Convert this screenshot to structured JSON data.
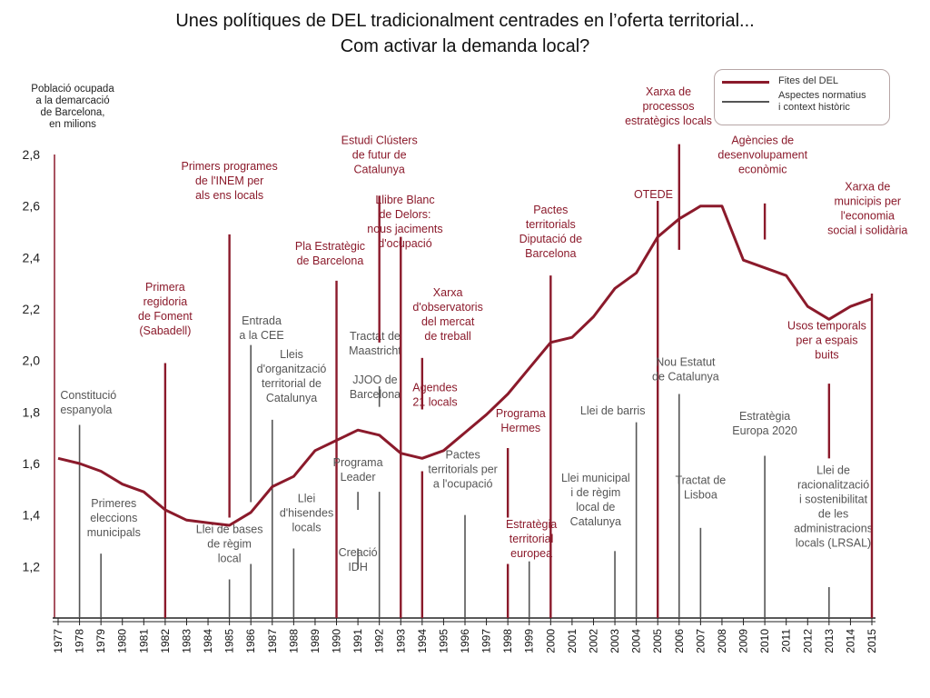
{
  "title": {
    "line1": "Unes polítiques de DEL tradicionalment centrades en l’oferta territorial...",
    "line2": "Com activar la demanda local?"
  },
  "colors": {
    "milestone": "#8b1a2b",
    "context": "#555555",
    "series": "#8b1a2b"
  },
  "chart_data": {
    "type": "line",
    "title": "",
    "ylabel": [
      "Població ocupada",
      "a la demarcació",
      "de Barcelona,",
      "en milions"
    ],
    "xlabel": "",
    "ylim": [
      1.0,
      2.8
    ],
    "yticks": [
      "1,2",
      "1,4",
      "1,6",
      "1,8",
      "2,0",
      "2,2",
      "2,4",
      "2,6",
      "2,8"
    ],
    "x": [
      "1977",
      "1978",
      "1979",
      "1980",
      "1981",
      "1982",
      "1983",
      "1984",
      "1985",
      "1986",
      "1987",
      "1988",
      "1989",
      "1990",
      "1991",
      "1992",
      "1993",
      "1994",
      "1995",
      "1996",
      "1997",
      "1998",
      "1999",
      "2000",
      "2001",
      "2002",
      "2003",
      "2004",
      "2005",
      "2006",
      "2007",
      "2008",
      "2009",
      "2010",
      "2011",
      "2012",
      "2013",
      "2014",
      "2015"
    ],
    "series": [
      {
        "values": [
          1.62,
          1.6,
          1.57,
          1.52,
          1.49,
          1.42,
          1.38,
          1.37,
          1.36,
          1.41,
          1.51,
          1.55,
          1.65,
          1.69,
          1.73,
          1.71,
          1.64,
          1.62,
          1.65,
          1.72,
          1.79,
          1.87,
          1.97,
          2.07,
          2.09,
          2.17,
          2.28,
          2.34,
          2.48,
          2.55,
          2.6,
          2.6,
          2.39,
          2.36,
          2.33,
          2.21,
          2.16,
          2.21,
          2.24
        ]
      }
    ],
    "legend": [
      {
        "label": [
          "Fites del DEL"
        ],
        "kind": "milestone"
      },
      {
        "label": [
          "Aspectes normatius",
          "i context històric"
        ],
        "kind": "context"
      }
    ],
    "annotations": [
      {
        "year": 1978,
        "kind": "context",
        "bottom": 1.0,
        "top": 1.75,
        "text": [
          "Constitució",
          "espanyola"
        ],
        "text_y": 1.85,
        "align": "left",
        "text_x": 1977.1
      },
      {
        "year": 1979,
        "kind": "context",
        "bottom": 1.0,
        "top": 1.25,
        "text": [
          "Primeres",
          "eleccions",
          "municipals"
        ],
        "text_y": 1.43,
        "align": "middle",
        "text_x": 1979.6
      },
      {
        "year": 1982,
        "kind": "milestone",
        "bottom": 1.0,
        "top": 1.99,
        "text": [
          "Primera",
          "regidoria",
          "de Foment",
          "(Sabadell)"
        ],
        "text_y": 2.27,
        "align": "middle",
        "text_x": 1982.0
      },
      {
        "year": 1985,
        "kind": "milestone",
        "bottom": 1.39,
        "top": 2.49,
        "text": [
          "Primers programes",
          "de l'INEM per",
          "als ens locals"
        ],
        "text_y": 2.74,
        "align": "middle",
        "text_x": 1985.0
      },
      {
        "year": 1985,
        "kind": "context",
        "bottom": 1.0,
        "top": 1.15,
        "text": [
          "Llei de bases",
          "de règim",
          "local"
        ],
        "text_y": 1.33,
        "align": "middle",
        "text_x": 1985.0
      },
      {
        "year": 1986,
        "kind": "context",
        "bottom": 1.0,
        "top": 1.21,
        "text": [],
        "text_y": 0,
        "align": "middle",
        "text_x": 1986.0
      },
      {
        "year": 1986,
        "kind": "context",
        "bottom": 1.45,
        "top": 2.06,
        "text": [
          "Entrada",
          "a la CEE"
        ],
        "text_y": 2.14,
        "align": "middle",
        "text_x": 1986.5
      },
      {
        "year": 1987,
        "kind": "context",
        "bottom": 1.0,
        "top": 1.77,
        "text": [
          "Lleis",
          "d'organització",
          "territorial de",
          "Catalunya"
        ],
        "text_y": 2.01,
        "align": "middle",
        "text_x": 1987.9
      },
      {
        "year": 1988,
        "kind": "context",
        "bottom": 1.0,
        "top": 1.27,
        "text": [
          "Llei",
          "d'hisendes",
          "locals"
        ],
        "text_y": 1.45,
        "align": "middle",
        "text_x": 1988.6
      },
      {
        "year": 1990,
        "kind": "milestone",
        "bottom": 1.0,
        "top": 2.31,
        "text": [
          "Pla Estratègic",
          "de Barcelona"
        ],
        "text_y": 2.43,
        "align": "middle",
        "text_x": 1989.7
      },
      {
        "year": 1991,
        "kind": "context",
        "bottom": 1.19,
        "top": 1.27,
        "text": [
          "Creació",
          "IDH"
        ],
        "text_y": 1.24,
        "align": "middle",
        "text_x": 1991.0
      },
      {
        "year": 1991,
        "kind": "context",
        "bottom": 1.42,
        "top": 1.49,
        "text": [
          "Programa",
          "Leader"
        ],
        "text_y": 1.59,
        "align": "middle",
        "text_x": 1991.0
      },
      {
        "year": 1992,
        "kind": "context",
        "bottom": 1.0,
        "top": 1.49,
        "text": [
          "JJOO de",
          "Barcelona"
        ],
        "text_y": 1.91,
        "align": "middle",
        "text_x": 1991.8
      },
      {
        "year": 1992,
        "kind": "context",
        "bottom": 1.82,
        "top": 1.9,
        "text": [
          "Tractat de",
          "Maastricht"
        ],
        "text_y": 2.08,
        "align": "middle",
        "text_x": 1991.8
      },
      {
        "year": 1992,
        "kind": "milestone",
        "bottom": 2.07,
        "top": 2.64,
        "text": [
          "Estudi Clústers",
          "de futur de",
          "Catalunya"
        ],
        "text_y": 2.84,
        "align": "middle",
        "text_x": 1992.0
      },
      {
        "year": 1993,
        "kind": "milestone",
        "bottom": 1.0,
        "top": 2.48,
        "text": [
          "Llibre Blanc",
          "de Delors:",
          "nous jaciments",
          "d'ocupació"
        ],
        "text_y": 2.61,
        "align": "middle",
        "text_x": 1993.2
      },
      {
        "year": 1994,
        "kind": "milestone",
        "bottom": 1.0,
        "top": 1.57,
        "text": [
          "Agendes",
          "21 locals"
        ],
        "text_y": 1.88,
        "align": "middle",
        "text_x": 1994.6
      },
      {
        "year": 1994,
        "kind": "milestone",
        "bottom": 1.81,
        "top": 2.01,
        "text": [
          "Xarxa",
          "d'observatoris",
          "del mercat",
          "de treball"
        ],
        "text_y": 2.25,
        "align": "middle",
        "text_x": 1995.2
      },
      {
        "year": 1996,
        "kind": "context",
        "bottom": 1.0,
        "top": 1.4,
        "text": [
          "Pactes",
          "territorials per",
          "a l'ocupació"
        ],
        "text_y": 1.62,
        "align": "middle",
        "text_x": 1995.9
      },
      {
        "year": 1998,
        "kind": "milestone",
        "bottom": 1.0,
        "top": 1.21,
        "text": [
          "Estratègia",
          "territorial",
          "europea"
        ],
        "text_y": 1.35,
        "align": "middle",
        "text_x": 1999.1
      },
      {
        "year": 1998,
        "kind": "milestone",
        "bottom": 1.39,
        "top": 1.66,
        "text": [
          "Programa",
          "Hermes"
        ],
        "text_y": 1.78,
        "align": "middle",
        "text_x": 1998.6
      },
      {
        "year": 1999,
        "kind": "context",
        "bottom": 1.0,
        "top": 1.22,
        "text": [],
        "text_y": 0,
        "align": "middle",
        "text_x": 1999.0
      },
      {
        "year": 2000,
        "kind": "milestone",
        "bottom": 1.0,
        "top": 2.33,
        "text": [
          "Pactes",
          "territorials",
          "Diputació de",
          "Barcelona"
        ],
        "text_y": 2.57,
        "align": "middle",
        "text_x": 2000.0
      },
      {
        "year": 2003,
        "kind": "context",
        "bottom": 1.0,
        "top": 1.26,
        "text": [
          "Llei municipal",
          "i de règim",
          "local de",
          "Catalunya"
        ],
        "text_y": 1.53,
        "align": "middle",
        "text_x": 2002.1
      },
      {
        "year": 2004,
        "kind": "context",
        "bottom": 1.0,
        "top": 1.76,
        "text": [
          "Llei de barris"
        ],
        "text_y": 1.79,
        "align": "middle",
        "text_x": 2002.9
      },
      {
        "year": 2005,
        "kind": "milestone",
        "bottom": 1.0,
        "top": 2.62,
        "text": [
          "OTEDE"
        ],
        "text_y": 2.63,
        "align": "middle",
        "text_x": 2004.8
      },
      {
        "year": 2006,
        "kind": "context",
        "bottom": 1.0,
        "top": 1.87,
        "text": [
          "Nou Estatut",
          "de Catalunya"
        ],
        "text_y": 1.98,
        "align": "middle",
        "text_x": 2006.3
      },
      {
        "year": 2006,
        "kind": "milestone",
        "bottom": 2.43,
        "top": 2.84,
        "text": [
          "Xarxa de",
          "processos",
          "estratègics locals"
        ],
        "text_y": 3.03,
        "align": "middle",
        "text_x": 2005.5
      },
      {
        "year": 2007,
        "kind": "context",
        "bottom": 1.0,
        "top": 1.35,
        "text": [
          "Tractat de",
          "Lisboa"
        ],
        "text_y": 1.52,
        "align": "middle",
        "text_x": 2007.0
      },
      {
        "year": 2010,
        "kind": "context",
        "bottom": 1.0,
        "top": 1.63,
        "text": [
          "Estratègia",
          "Europa 2020"
        ],
        "text_y": 1.77,
        "align": "middle",
        "text_x": 2010.0
      },
      {
        "year": 2010,
        "kind": "milestone",
        "bottom": 2.47,
        "top": 2.61,
        "text": [
          "Agències de",
          "desenvolupament",
          "econòmic"
        ],
        "text_y": 2.84,
        "align": "middle",
        "text_x": 2009.9
      },
      {
        "year": 2013,
        "kind": "context",
        "bottom": 1.0,
        "top": 1.12,
        "text": [
          "Llei de",
          "racionalització",
          "i sostenibilitat",
          "de les",
          "administracions",
          "locals (LRSAL)"
        ],
        "text_y": 1.56,
        "align": "middle",
        "text_x": 2013.2
      },
      {
        "year": 2013,
        "kind": "milestone",
        "bottom": 1.62,
        "top": 1.91,
        "text": [
          "Usos temporals",
          "per a espais",
          "buits"
        ],
        "text_y": 2.12,
        "align": "middle",
        "text_x": 2012.9
      },
      {
        "year": 2015,
        "kind": "milestone",
        "bottom": 1.0,
        "top": 2.26,
        "text": [
          "Xarxa de",
          "municipis per",
          "l'economia",
          "social i solidària"
        ],
        "text_y": 2.66,
        "align": "middle",
        "text_x": 2014.8
      }
    ]
  }
}
